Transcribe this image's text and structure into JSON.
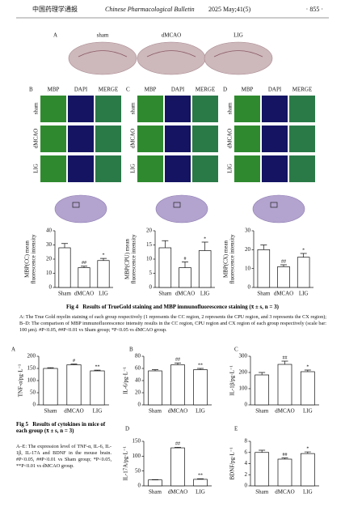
{
  "header": {
    "journal_cn": "中国药理学通报",
    "journal_en": "Chinese Pharmacological Bulletin",
    "issue": "2025 May;41(5)",
    "page": "· 855 ·"
  },
  "figure4": {
    "panel_a": {
      "label": "A",
      "columns": [
        "sham",
        "dMCAO",
        "LIG"
      ]
    },
    "panels": [
      {
        "label": "B",
        "columns": [
          "MBP",
          "DAPI",
          "MERGE"
        ],
        "rows": [
          "sham",
          "dMCAO",
          "LIG"
        ]
      },
      {
        "label": "C",
        "columns": [
          "MBP",
          "DAPI",
          "MERGE"
        ],
        "rows": [
          "sham",
          "dMCAO",
          "LIG"
        ]
      },
      {
        "label": "D",
        "columns": [
          "MBP",
          "DAPI",
          "MERGE"
        ],
        "rows": [
          "sham",
          "dMCAO",
          "LIG"
        ]
      }
    ],
    "caption": {
      "number": "Fig 4",
      "title": "Results of TrueGold staining and MBP immunofluorescence staining (x̄ ± s, n = 3)",
      "body": "A: The True Gold myelin staining of each group respectively (1 represents the CC region, 2 represents the CPU region, and 3 represents the CX region); B–D: The comparison of MBP immunofluorescence intensity results in the CC region, CPU region and CX region of each group respectively (scale bar: 100 μm). #P<0.05, ##P<0.01 vs Sham group; *P<0.05 vs dMCAO group."
    }
  },
  "figure5": {
    "caption": {
      "number": "Fig 5",
      "title": "Results of cytokines in mice of each group (x̄ ± s, n = 3)",
      "body": "A–E: The expression level of TNF-α, IL-6, IL-1β, IL-17A and BDNF in the mouse brain. #P<0.05, ##P<0.01 vs Sham group; *P<0.05, **P<0.01 vs dMCAO group."
    }
  },
  "chart_data": [
    {
      "type": "bar",
      "ylabel": [
        "MBP(CC) mean",
        "fluorescence intensity"
      ],
      "categories": [
        "Sham",
        "dMCAO",
        "LIG"
      ],
      "values": [
        28,
        14,
        19
      ],
      "errors": [
        3,
        1,
        1.5
      ],
      "annotations": [
        null,
        "##",
        "*"
      ],
      "color": "#ffffff",
      "ylim": [
        0,
        40
      ],
      "yticks": [
        0,
        10,
        20,
        30,
        40
      ]
    },
    {
      "type": "bar",
      "ylabel": [
        "MBP(CPU) mean",
        "fluorescence intensity"
      ],
      "categories": [
        "Sham",
        "dMCAO",
        "LIG"
      ],
      "values": [
        14,
        7,
        13
      ],
      "errors": [
        2.5,
        2,
        3
      ],
      "annotations": [
        null,
        "#",
        "*"
      ],
      "color": "#ffffff",
      "ylim": [
        0,
        20
      ],
      "yticks": [
        0,
        5,
        10,
        15,
        20
      ]
    },
    {
      "type": "bar",
      "ylabel": [
        "MBP(CX) mean",
        "fluorescence intensity"
      ],
      "categories": [
        "Sham",
        "dMCAO",
        "LIG"
      ],
      "values": [
        20,
        11,
        16
      ],
      "errors": [
        2.5,
        1,
        2
      ],
      "annotations": [
        null,
        "##",
        "*"
      ],
      "color": "#ffffff",
      "ylim": [
        0,
        30
      ],
      "yticks": [
        0,
        10,
        20,
        30
      ]
    },
    {
      "type": "bar",
      "label": "A",
      "ylabel": [
        "TNF-α/pg·L⁻¹"
      ],
      "categories": [
        "Sham",
        "dMCAO",
        "LIG"
      ],
      "values": [
        150,
        165,
        140
      ],
      "errors": [
        3,
        3,
        3
      ],
      "annotations": [
        null,
        "#",
        "**"
      ],
      "color": "#ffffff",
      "ylim": [
        0,
        200
      ],
      "yticks": [
        0,
        50,
        100,
        150,
        200
      ]
    },
    {
      "type": "bar",
      "label": "B",
      "ylabel": [
        "IL-6/pg·L⁻¹"
      ],
      "categories": [
        "Sham",
        "dMCAO",
        "LIG"
      ],
      "values": [
        56,
        66,
        58
      ],
      "errors": [
        2,
        3,
        2
      ],
      "annotations": [
        null,
        "##",
        "**"
      ],
      "color": "#ffffff",
      "ylim": [
        0,
        80
      ],
      "yticks": [
        0,
        20,
        40,
        60,
        80
      ]
    },
    {
      "type": "bar",
      "label": "C",
      "ylabel": [
        "IL-1β/pg·L⁻¹"
      ],
      "categories": [
        "Sham",
        "dMCAO",
        "LIG"
      ],
      "values": [
        185,
        250,
        205
      ],
      "errors": [
        15,
        20,
        10
      ],
      "annotations": [
        null,
        "##",
        "*"
      ],
      "color": "#ffffff",
      "ylim": [
        0,
        300
      ],
      "yticks": [
        0,
        100,
        200,
        300
      ]
    },
    {
      "type": "bar",
      "label": "D",
      "ylabel": [
        "IL-17A/pg·L⁻¹"
      ],
      "categories": [
        "Sham",
        "dMCAO",
        "LIG"
      ],
      "values": [
        20,
        128,
        22
      ],
      "errors": [
        1,
        2,
        2
      ],
      "annotations": [
        null,
        "##",
        "**"
      ],
      "color": "#ffffff",
      "ylim": [
        0,
        150
      ],
      "yticks": [
        0,
        50,
        100,
        150
      ]
    },
    {
      "type": "bar",
      "label": "E",
      "ylabel": [
        "BDNF/pg·L⁻¹"
      ],
      "categories": [
        "Sham",
        "dMCAO",
        "LIG"
      ],
      "values": [
        6,
        4.8,
        5.8
      ],
      "errors": [
        0.4,
        0.2,
        0.3
      ],
      "annotations": [
        null,
        "##",
        "*"
      ],
      "color": "#ffffff",
      "ylim": [
        0,
        8
      ],
      "yticks": [
        0,
        2,
        4,
        6,
        8
      ]
    }
  ]
}
